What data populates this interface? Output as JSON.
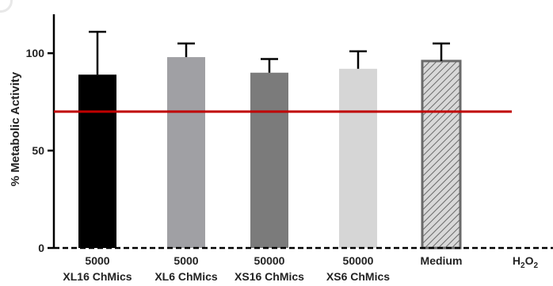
{
  "chart_data": {
    "type": "bar",
    "ylabel": "% Metabolic Activity",
    "xlabel": "",
    "ylim": [
      0,
      120
    ],
    "yticks": [
      0,
      50,
      100
    ],
    "categories": [
      {
        "line1": "5000",
        "line2": "XL16 ChMics"
      },
      {
        "line1": "5000",
        "line2": "XL6 ChMics"
      },
      {
        "line1": "50000",
        "line2": "XS16 ChMics"
      },
      {
        "line1": "50000",
        "line2": "XS6 ChMics"
      },
      {
        "line1": "Medium",
        "line2": ""
      },
      {
        "line1": "H2O2",
        "line2": ""
      }
    ],
    "values": [
      89,
      98,
      90,
      92,
      96,
      0
    ],
    "error_upper": [
      111,
      105,
      97,
      101,
      105,
      null
    ],
    "bar_fills": [
      "#000000",
      "#a0a0a4",
      "#7b7b7b",
      "#d6d6d6",
      "hatched",
      "none"
    ],
    "threshold": {
      "value": 70,
      "color": "#c00000"
    },
    "grid": false,
    "legend": "none"
  }
}
